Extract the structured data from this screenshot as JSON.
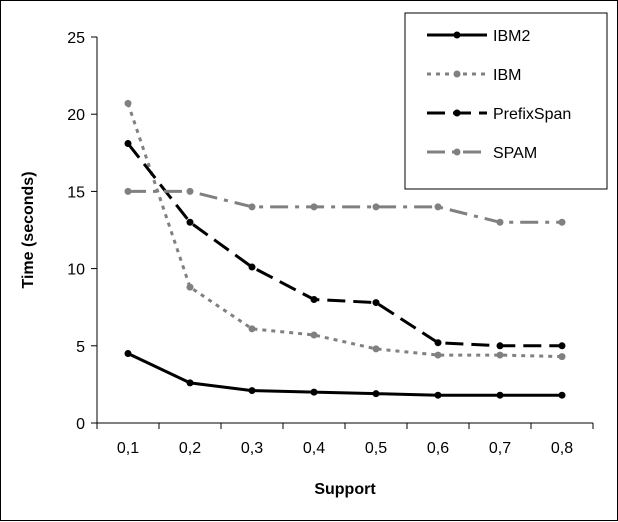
{
  "chart_data": {
    "type": "line",
    "title": "",
    "xlabel": "Support",
    "ylabel": "Time (seconds)",
    "categories": [
      "0,1",
      "0,2",
      "0,3",
      "0,4",
      "0,5",
      "0,6",
      "0,7",
      "0,8"
    ],
    "ylim": [
      0,
      25
    ],
    "yticks": [
      "0",
      "5",
      "10",
      "15",
      "20",
      "25"
    ],
    "grid": false,
    "legend_position": "top-right",
    "series": [
      {
        "name": "IBM2",
        "values": [
          4.5,
          2.6,
          2.1,
          2.0,
          1.9,
          1.8,
          1.8,
          1.8
        ],
        "color": "#000000",
        "dash": "solid"
      },
      {
        "name": "IBM",
        "values": [
          20.7,
          8.8,
          6.1,
          5.7,
          4.8,
          4.4,
          4.4,
          4.3
        ],
        "color": "#808080",
        "dash": "dot"
      },
      {
        "name": "PrefixSpan",
        "values": [
          18.1,
          13.0,
          10.1,
          8.0,
          7.8,
          5.2,
          5.0,
          5.0
        ],
        "color": "#000000",
        "dash": "dash"
      },
      {
        "name": "SPAM",
        "values": [
          15.0,
          15.0,
          14.0,
          14.0,
          14.0,
          14.0,
          13.0,
          13.0
        ],
        "color": "#808080",
        "dash": "dashdot"
      }
    ]
  }
}
